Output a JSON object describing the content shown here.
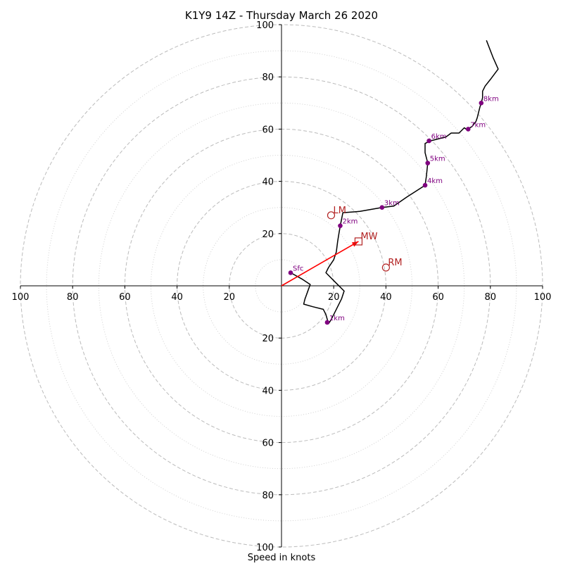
{
  "chart_data": {
    "type": "hodograph",
    "title": "K1Y9 14Z - Thursday March 26 2020",
    "xlabel": "Speed in knots",
    "ylabel": "",
    "xlim": [
      -100,
      100
    ],
    "ylim": [
      -100,
      100
    ],
    "x_tick_labels": [
      "100",
      "80",
      "60",
      "40",
      "20",
      "20",
      "40",
      "60",
      "80",
      "100"
    ],
    "x_tick_values": [
      -100,
      -80,
      -60,
      -40,
      -20,
      20,
      40,
      60,
      80,
      100
    ],
    "y_tick_labels": [
      "100",
      "80",
      "60",
      "40",
      "20",
      "20",
      "40",
      "60",
      "80",
      "100"
    ],
    "y_tick_values": [
      100,
      80,
      60,
      40,
      20,
      -20,
      -40,
      -60,
      -80,
      -100
    ],
    "rings_major": [
      20,
      40,
      60,
      80,
      100
    ],
    "rings_minor": [
      10,
      30,
      50,
      70,
      90
    ],
    "hodograph_line": [
      [
        3.5,
        5
      ],
      [
        8,
        2.5
      ],
      [
        11,
        0.5
      ],
      [
        9,
        -5
      ],
      [
        8.5,
        -7
      ],
      [
        12,
        -8
      ],
      [
        16,
        -9
      ],
      [
        17,
        -11
      ],
      [
        18,
        -14.5
      ],
      [
        19,
        -13
      ],
      [
        21,
        -9
      ],
      [
        23,
        -5
      ],
      [
        24,
        -2
      ],
      [
        21,
        1
      ],
      [
        17,
        5
      ],
      [
        18,
        7
      ],
      [
        20,
        10
      ],
      [
        21,
        13
      ],
      [
        21.5,
        17
      ],
      [
        22,
        20
      ],
      [
        22.5,
        23
      ],
      [
        23.5,
        28
      ],
      [
        30,
        28.5
      ],
      [
        38.5,
        30
      ],
      [
        43,
        30.5
      ],
      [
        48,
        34
      ],
      [
        55,
        38.5
      ],
      [
        55.5,
        42
      ],
      [
        56,
        47
      ],
      [
        55,
        51
      ],
      [
        55,
        54.5
      ],
      [
        57,
        55.5
      ],
      [
        63,
        57
      ],
      [
        65,
        58.5
      ],
      [
        68,
        58.5
      ],
      [
        70,
        60.5
      ],
      [
        71,
        59.8
      ],
      [
        73,
        61
      ],
      [
        74.5,
        63
      ],
      [
        75,
        64.5
      ],
      [
        75.5,
        66.5
      ],
      [
        76,
        68.5
      ],
      [
        76.5,
        70
      ],
      [
        77,
        72
      ],
      [
        77,
        74.5
      ],
      [
        78,
        76.5
      ],
      [
        80,
        79
      ],
      [
        83,
        83
      ],
      [
        81,
        87.5
      ],
      [
        78.5,
        94
      ]
    ],
    "height_markers": [
      {
        "label": "Sfc",
        "u": 3.5,
        "v": 5
      },
      {
        "label": "1km",
        "u": 17.5,
        "v": -14
      },
      {
        "label": "2km",
        "u": 22.5,
        "v": 23
      },
      {
        "label": "3km",
        "u": 38.5,
        "v": 30
      },
      {
        "label": "4km",
        "u": 55,
        "v": 38.5
      },
      {
        "label": "5km",
        "u": 56,
        "v": 47
      },
      {
        "label": "6km",
        "u": 56.5,
        "v": 55.5
      },
      {
        "label": "7km",
        "u": 71.5,
        "v": 60
      },
      {
        "label": "8km",
        "u": 76.5,
        "v": 70
      }
    ],
    "storm_motions": [
      {
        "label": "LM",
        "marker": "circle",
        "u": 19,
        "v": 27
      },
      {
        "label": "MW",
        "marker": "square",
        "u": 29.5,
        "v": 17
      },
      {
        "label": "RM",
        "marker": "circle",
        "u": 40,
        "v": 7
      }
    ],
    "mean_wind_vector": {
      "from": [
        0,
        0
      ],
      "to": [
        29.5,
        17
      ]
    },
    "colors": {
      "hodograph_line": "#000000",
      "height_marker": "#800080",
      "storm_motion": "#b22222",
      "mean_wind_vector": "#ff0000",
      "grid": "#bbbbbb",
      "axis": "#000000"
    },
    "grid": true
  }
}
